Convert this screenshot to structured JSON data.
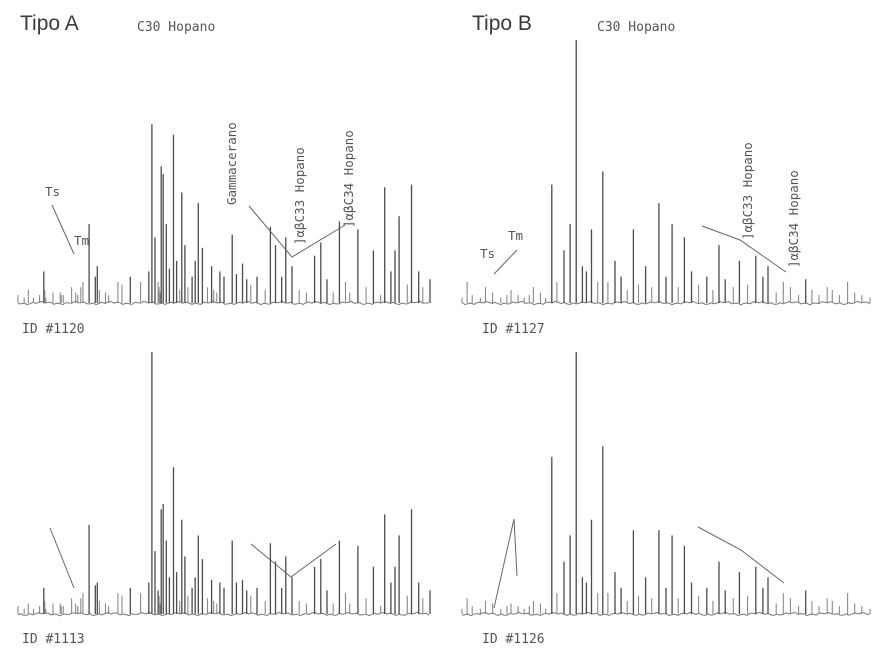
{
  "chart_data": [
    {
      "type": "line",
      "group": "Tipo A",
      "sample": "ID #1120",
      "labels": [
        "Ts",
        "Tm",
        "C30 Hopano",
        "Gammacerano",
        "]αβC33 Hopano",
        "]αβC34 Hopano"
      ],
      "rt": [
        0.0,
        0.06,
        0.1,
        0.15,
        0.21,
        0.25,
        0.26,
        0.27,
        0.34,
        0.41,
        0.42,
        0.44,
        0.52,
        0.56,
        0.58,
        0.61,
        0.63,
        0.69,
        0.75,
        0.77,
        0.79,
        0.85,
        0.88,
        0.97,
        1.01,
        1.09,
        1.19,
        1.27,
        1.3,
        1.33,
        1.36,
        1.37,
        1.38,
        1.39,
        1.41,
        1.44,
        1.47,
        1.51,
        1.54,
        1.57,
        1.59,
        1.62,
        1.65,
        1.69,
        1.72,
        1.75,
        1.79,
        1.84,
        1.88,
        1.9,
        1.93,
        1.96,
        2.0,
        2.08,
        2.12,
        2.18,
        2.22,
        2.26,
        2.32,
        2.4,
        2.45,
        2.5,
        2.56,
        2.6,
        2.66,
        2.73,
        2.8,
        2.88,
        2.94,
        3.0,
        3.06,
        3.12,
        3.18,
        3.22,
        3.3,
        3.38,
        3.45,
        3.52,
        3.56,
        3.62,
        3.66,
        3.7,
        3.78,
        3.82,
        3.89,
        3.93,
        4.0
      ],
      "intensity": [
        3,
        2,
        5,
        2,
        3,
        12,
        5,
        2,
        4,
        4,
        3,
        3,
        6,
        4,
        3,
        6,
        8,
        30,
        10,
        14,
        5,
        4,
        3,
        8,
        7,
        10,
        8,
        12,
        68,
        25,
        8,
        6,
        4,
        52,
        49,
        30,
        13,
        64,
        16,
        5,
        42,
        22,
        6,
        10,
        16,
        38,
        21,
        6,
        14,
        5,
        4,
        12,
        10,
        26,
        11,
        15,
        9,
        7,
        10,
        5,
        29,
        22,
        10,
        25,
        14,
        5,
        4,
        18,
        23,
        9,
        4,
        31,
        8,
        4,
        28,
        6,
        20,
        3,
        44,
        12,
        20,
        33,
        7,
        45,
        12,
        6,
        9
      ],
      "labels_rt": [
        0.92,
        0.92,
        1.0,
        1.0,
        1.0,
        1.0
      ]
    },
    {
      "type": "line",
      "group": "Tipo B",
      "sample": "ID #1127",
      "labels": [
        "Ts",
        "Tm",
        "C30 Hopano",
        "]αβC33 Hopano",
        "]αβC34 Hopano"
      ],
      "rt": [
        0.0,
        0.05,
        0.1,
        0.18,
        0.23,
        0.3,
        0.38,
        0.44,
        0.48,
        0.55,
        0.61,
        0.66,
        0.7,
        0.77,
        0.82,
        0.88,
        0.93,
        1.0,
        1.06,
        1.12,
        1.18,
        1.22,
        1.27,
        1.33,
        1.38,
        1.43,
        1.5,
        1.56,
        1.62,
        1.68,
        1.73,
        1.8,
        1.86,
        1.93,
        2.0,
        2.06,
        2.12,
        2.18,
        2.25,
        2.32,
        2.4,
        2.46,
        2.52,
        2.58,
        2.66,
        2.72,
        2.8,
        2.88,
        2.95,
        3.0,
        3.08,
        3.15,
        3.22,
        3.3,
        3.37,
        3.43,
        3.5,
        3.58,
        3.63,
        3.7,
        3.78,
        3.85,
        3.92,
        4.0
      ],
      "intensity": [
        2,
        8,
        3,
        2,
        6,
        4,
        2,
        3,
        5,
        3,
        2,
        3,
        6,
        4,
        2,
        45,
        8,
        20,
        30,
        100,
        14,
        12,
        28,
        8,
        50,
        8,
        16,
        10,
        5,
        28,
        7,
        14,
        6,
        38,
        10,
        30,
        6,
        25,
        12,
        7,
        10,
        5,
        22,
        9,
        6,
        16,
        7,
        18,
        10,
        14,
        4,
        8,
        6,
        3,
        9,
        5,
        3,
        6,
        5,
        3,
        8,
        4,
        3,
        2
      ],
      "labels_rt": [
        0.92,
        0.92,
        1.0,
        1.0,
        1.0
      ]
    },
    {
      "type": "line",
      "group": "Tipo A",
      "sample": "ID #1113",
      "rt": [
        0.0,
        0.06,
        0.1,
        0.15,
        0.21,
        0.25,
        0.26,
        0.27,
        0.34,
        0.41,
        0.42,
        0.44,
        0.52,
        0.56,
        0.58,
        0.61,
        0.63,
        0.69,
        0.75,
        0.77,
        0.79,
        0.85,
        0.88,
        0.97,
        1.01,
        1.09,
        1.19,
        1.27,
        1.3,
        1.33,
        1.36,
        1.37,
        1.38,
        1.39,
        1.41,
        1.44,
        1.47,
        1.51,
        1.54,
        1.57,
        1.59,
        1.62,
        1.65,
        1.69,
        1.72,
        1.75,
        1.79,
        1.84,
        1.88,
        1.9,
        1.93,
        1.96,
        2.0,
        2.08,
        2.12,
        2.18,
        2.22,
        2.26,
        2.32,
        2.4,
        2.45,
        2.5,
        2.56,
        2.6,
        2.66,
        2.73,
        2.8,
        2.88,
        2.94,
        3.0,
        3.06,
        3.12,
        3.18,
        3.22,
        3.3,
        3.38,
        3.45,
        3.52,
        3.56,
        3.62,
        3.66,
        3.7,
        3.78,
        3.82,
        3.89,
        3.93,
        4.0
      ],
      "intensity": [
        3,
        2,
        4,
        2,
        3,
        10,
        5,
        2,
        4,
        4,
        3,
        3,
        6,
        4,
        3,
        6,
        8,
        34,
        11,
        12,
        5,
        4,
        3,
        8,
        7,
        10,
        8,
        12,
        100,
        24,
        9,
        7,
        4,
        40,
        42,
        28,
        14,
        56,
        16,
        5,
        36,
        22,
        7,
        10,
        14,
        30,
        21,
        6,
        13,
        5,
        4,
        12,
        10,
        28,
        12,
        13,
        9,
        7,
        10,
        5,
        27,
        20,
        10,
        22,
        14,
        5,
        4,
        18,
        21,
        9,
        4,
        28,
        8,
        4,
        26,
        6,
        18,
        3,
        38,
        12,
        18,
        30,
        7,
        40,
        12,
        6,
        9
      ]
    },
    {
      "type": "line",
      "group": "Tipo B",
      "sample": "ID #1126",
      "rt": [
        0.0,
        0.05,
        0.1,
        0.18,
        0.23,
        0.3,
        0.38,
        0.44,
        0.48,
        0.55,
        0.61,
        0.66,
        0.7,
        0.77,
        0.82,
        0.88,
        0.93,
        1.0,
        1.06,
        1.12,
        1.18,
        1.22,
        1.27,
        1.33,
        1.38,
        1.43,
        1.5,
        1.56,
        1.62,
        1.68,
        1.73,
        1.8,
        1.86,
        1.93,
        2.0,
        2.06,
        2.12,
        2.18,
        2.25,
        2.32,
        2.4,
        2.46,
        2.52,
        2.58,
        2.66,
        2.72,
        2.8,
        2.88,
        2.95,
        3.0,
        3.08,
        3.15,
        3.22,
        3.3,
        3.37,
        3.43,
        3.5,
        3.58,
        3.63,
        3.7,
        3.78,
        3.85,
        3.92,
        4.0
      ],
      "intensity": [
        2,
        6,
        3,
        2,
        5,
        4,
        2,
        3,
        4,
        3,
        2,
        3,
        5,
        4,
        2,
        60,
        8,
        20,
        30,
        100,
        14,
        12,
        36,
        8,
        64,
        8,
        16,
        10,
        5,
        32,
        7,
        14,
        6,
        32,
        10,
        30,
        6,
        26,
        12,
        7,
        10,
        5,
        20,
        9,
        6,
        16,
        7,
        18,
        10,
        14,
        4,
        8,
        6,
        3,
        9,
        5,
        3,
        6,
        5,
        3,
        8,
        4,
        3,
        2
      ]
    }
  ],
  "titles": {
    "left": "Tipo A",
    "right": "Tipo B"
  },
  "ids": {
    "p1120": "ID #1120",
    "p1127": "ID #1127",
    "p1113": "ID #1113",
    "p1126": "ID #1126"
  },
  "peaks": {
    "ts_a": "Ts",
    "tm_a": "Tm",
    "c30_a": "C30 Hopano",
    "gamma_a": "Gammacerano",
    "c33_a": "]αβC33 Hopano",
    "c34_a": "]αβC34 Hopano",
    "ts_b": "Ts",
    "tm_b": "Tm",
    "c30_b": "C30 Hopano",
    "c33_b": "]αβC33 Hopano",
    "c34_b": "]αβC34 Hopano"
  }
}
